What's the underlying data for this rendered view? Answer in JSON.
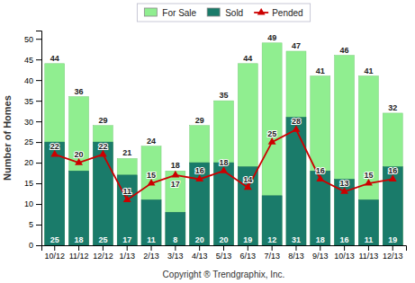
{
  "chart_data": {
    "type": "bar",
    "x_label": "Copyright ® Trendgraphix, Inc.",
    "y_label": "Number of Homes",
    "categories": [
      "10/12",
      "11/12",
      "12/12",
      "1/13",
      "2/13",
      "3/13",
      "4/13",
      "5/13",
      "6/13",
      "7/13",
      "8/13",
      "9/13",
      "10/13",
      "11/13",
      "12/13"
    ],
    "series": [
      {
        "name": "For Sale",
        "color": "#90ee90",
        "values": [
          44,
          36,
          29,
          21,
          24,
          18,
          29,
          35,
          44,
          49,
          47,
          41,
          46,
          41,
          32
        ]
      },
      {
        "name": "Sold",
        "color": "#1a7b6a",
        "values": [
          25,
          18,
          25,
          17,
          11,
          8,
          20,
          20,
          19,
          12,
          31,
          18,
          16,
          11,
          19
        ]
      },
      {
        "name": "Pended",
        "type": "line",
        "color": "#cc0000",
        "marker": "triangle",
        "values": [
          22,
          20,
          22,
          11,
          15,
          17,
          16,
          18,
          14,
          25,
          28,
          16,
          13,
          15,
          16
        ]
      }
    ],
    "ylim": [
      0,
      52
    ],
    "yticks": [
      0,
      5,
      10,
      15,
      20,
      25,
      30,
      35,
      40,
      45,
      50
    ],
    "stacked": false,
    "data_labels": true,
    "grid": false,
    "legend": "top"
  }
}
